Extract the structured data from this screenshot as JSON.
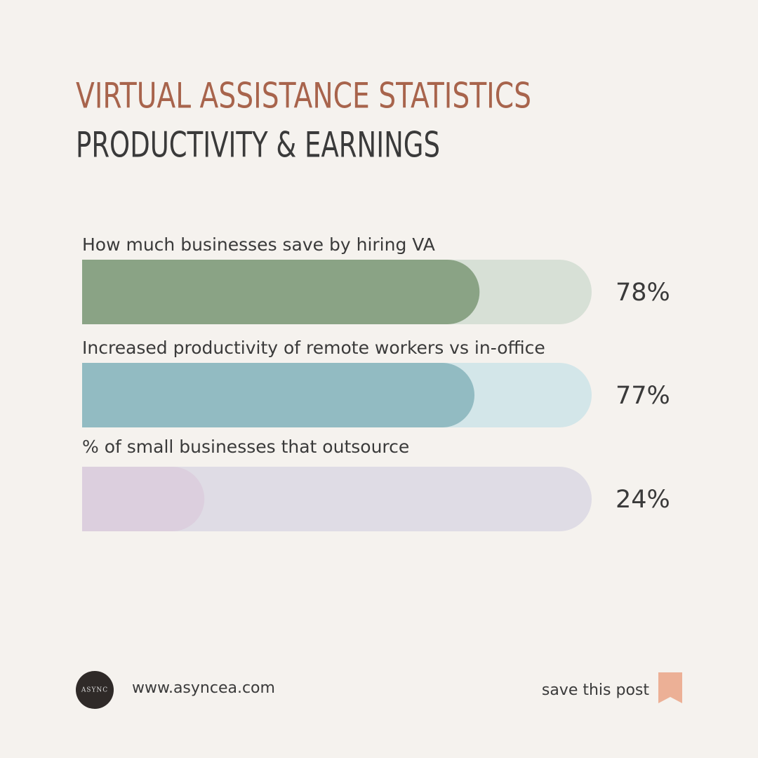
{
  "chart_data": {
    "type": "bar",
    "title": "VIRTUAL ASSISTANCE STATISTICS",
    "subtitle": "PRODUCTIVITY & EARNINGS",
    "categories": [
      "How much businesses save by hiring VA",
      "Increased productivity of remote workers vs in-office",
      "% of small businesses that outsource"
    ],
    "values": [
      78,
      77,
      24
    ],
    "value_labels": [
      "78%",
      "77%",
      "24%"
    ],
    "colors": [
      "#8aa385",
      "#92bbc2",
      "#dccfde"
    ],
    "xlim": [
      0,
      100
    ]
  },
  "footer": {
    "logo": "ASYNC",
    "website": "www.asyncea.com",
    "cta": "save this post"
  }
}
